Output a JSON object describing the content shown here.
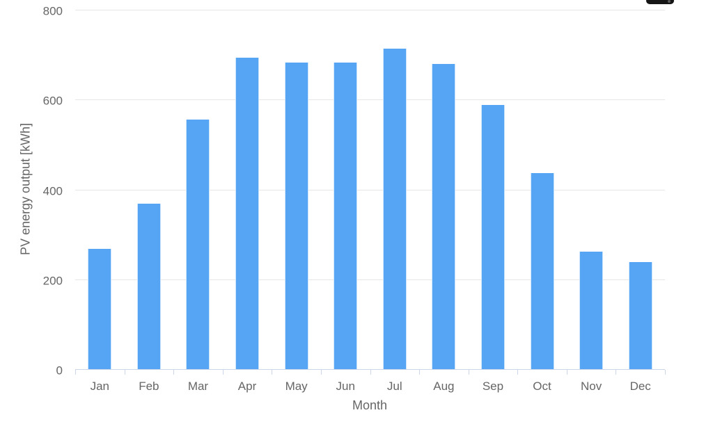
{
  "chart_data": {
    "type": "bar",
    "categories": [
      "Jan",
      "Feb",
      "Mar",
      "Apr",
      "May",
      "Jun",
      "Jul",
      "Aug",
      "Sep",
      "Oct",
      "Nov",
      "Dec"
    ],
    "values": [
      268,
      369,
      556,
      693,
      683,
      682,
      713,
      680,
      588,
      437,
      262,
      239
    ],
    "xlabel": "Month",
    "ylabel": "PV energy output [kWh]",
    "ylim": [
      0,
      800
    ],
    "yticks": [
      0,
      200,
      400,
      600,
      800
    ],
    "grid": true,
    "legend": false,
    "bar_color": "#55a5f4",
    "grid_color": "#e6e6e6",
    "axis_line_color": "#ccd6eb",
    "label_color": "#666666"
  },
  "ui": {
    "top_right_artifact": "cropped-dark-pill"
  }
}
